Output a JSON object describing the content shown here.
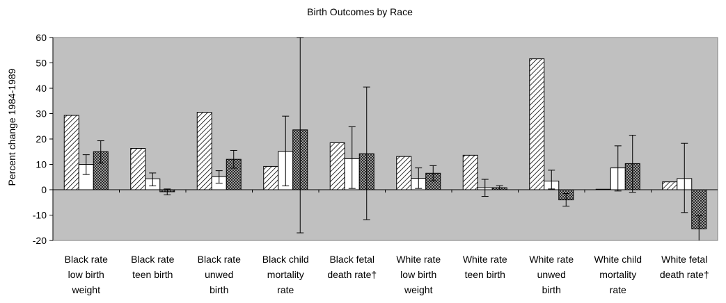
{
  "chart_data": {
    "type": "bar",
    "title": "Birth Outcomes by Race",
    "ylabel": "Percent change 1984-1989",
    "xlabel": "",
    "ylim": [
      -20,
      60
    ],
    "yticks": [
      60,
      50,
      40,
      30,
      20,
      10,
      0,
      -10,
      -20
    ],
    "grid": false,
    "legend": "none",
    "plot_background": "#c0c0c0",
    "categories": [
      [
        "Black rate",
        "low birth",
        "weight"
      ],
      [
        "Black rate",
        "teen birth"
      ],
      [
        "Black rate",
        "unwed",
        "birth"
      ],
      [
        "Black child",
        "mortality",
        "rate"
      ],
      [
        "Black fetal",
        "death rate†"
      ],
      [
        "White rate",
        "low birth",
        "weight"
      ],
      [
        "White rate",
        "teen birth"
      ],
      [
        "White rate",
        "unwed",
        "birth"
      ],
      [
        "White child",
        "mortality",
        "rate"
      ],
      [
        "White fetal",
        "death rate†"
      ]
    ],
    "series": [
      {
        "pattern": "diagonal-hatch",
        "values": [
          29.3,
          16.3,
          30.5,
          9.2,
          18.5,
          13.1,
          13.6,
          51.6,
          0.2,
          3.1
        ],
        "error_low": [
          null,
          null,
          null,
          null,
          null,
          null,
          null,
          null,
          null,
          null
        ],
        "error_high": [
          null,
          null,
          null,
          null,
          null,
          null,
          null,
          null,
          null,
          null
        ]
      },
      {
        "pattern": "white",
        "values": [
          10,
          4.3,
          5.2,
          15.1,
          12.2,
          4.5,
          0.8,
          3.4,
          8.6,
          4.4
        ],
        "error_low": [
          6,
          1.5,
          2.6,
          1.5,
          0.5,
          0.5,
          -2.6,
          0.3,
          -0.5,
          -9
        ],
        "error_high": [
          13.8,
          6.6,
          7.5,
          29,
          24.8,
          8.6,
          4.1,
          7.7,
          17.3,
          18.3
        ]
      },
      {
        "pattern": "crosshatch",
        "values": [
          15,
          -0.8,
          12,
          23.6,
          14.2,
          6.5,
          0.8,
          -4,
          10.3,
          -15.4
        ],
        "error_low": [
          10.5,
          -2,
          8.5,
          -17,
          -11.8,
          3.5,
          0,
          -6.5,
          -1,
          -20.5
        ],
        "error_high": [
          19.3,
          0.3,
          15.5,
          60,
          40.5,
          9.5,
          1.6,
          -1.5,
          21.5,
          -10.3
        ]
      }
    ]
  }
}
